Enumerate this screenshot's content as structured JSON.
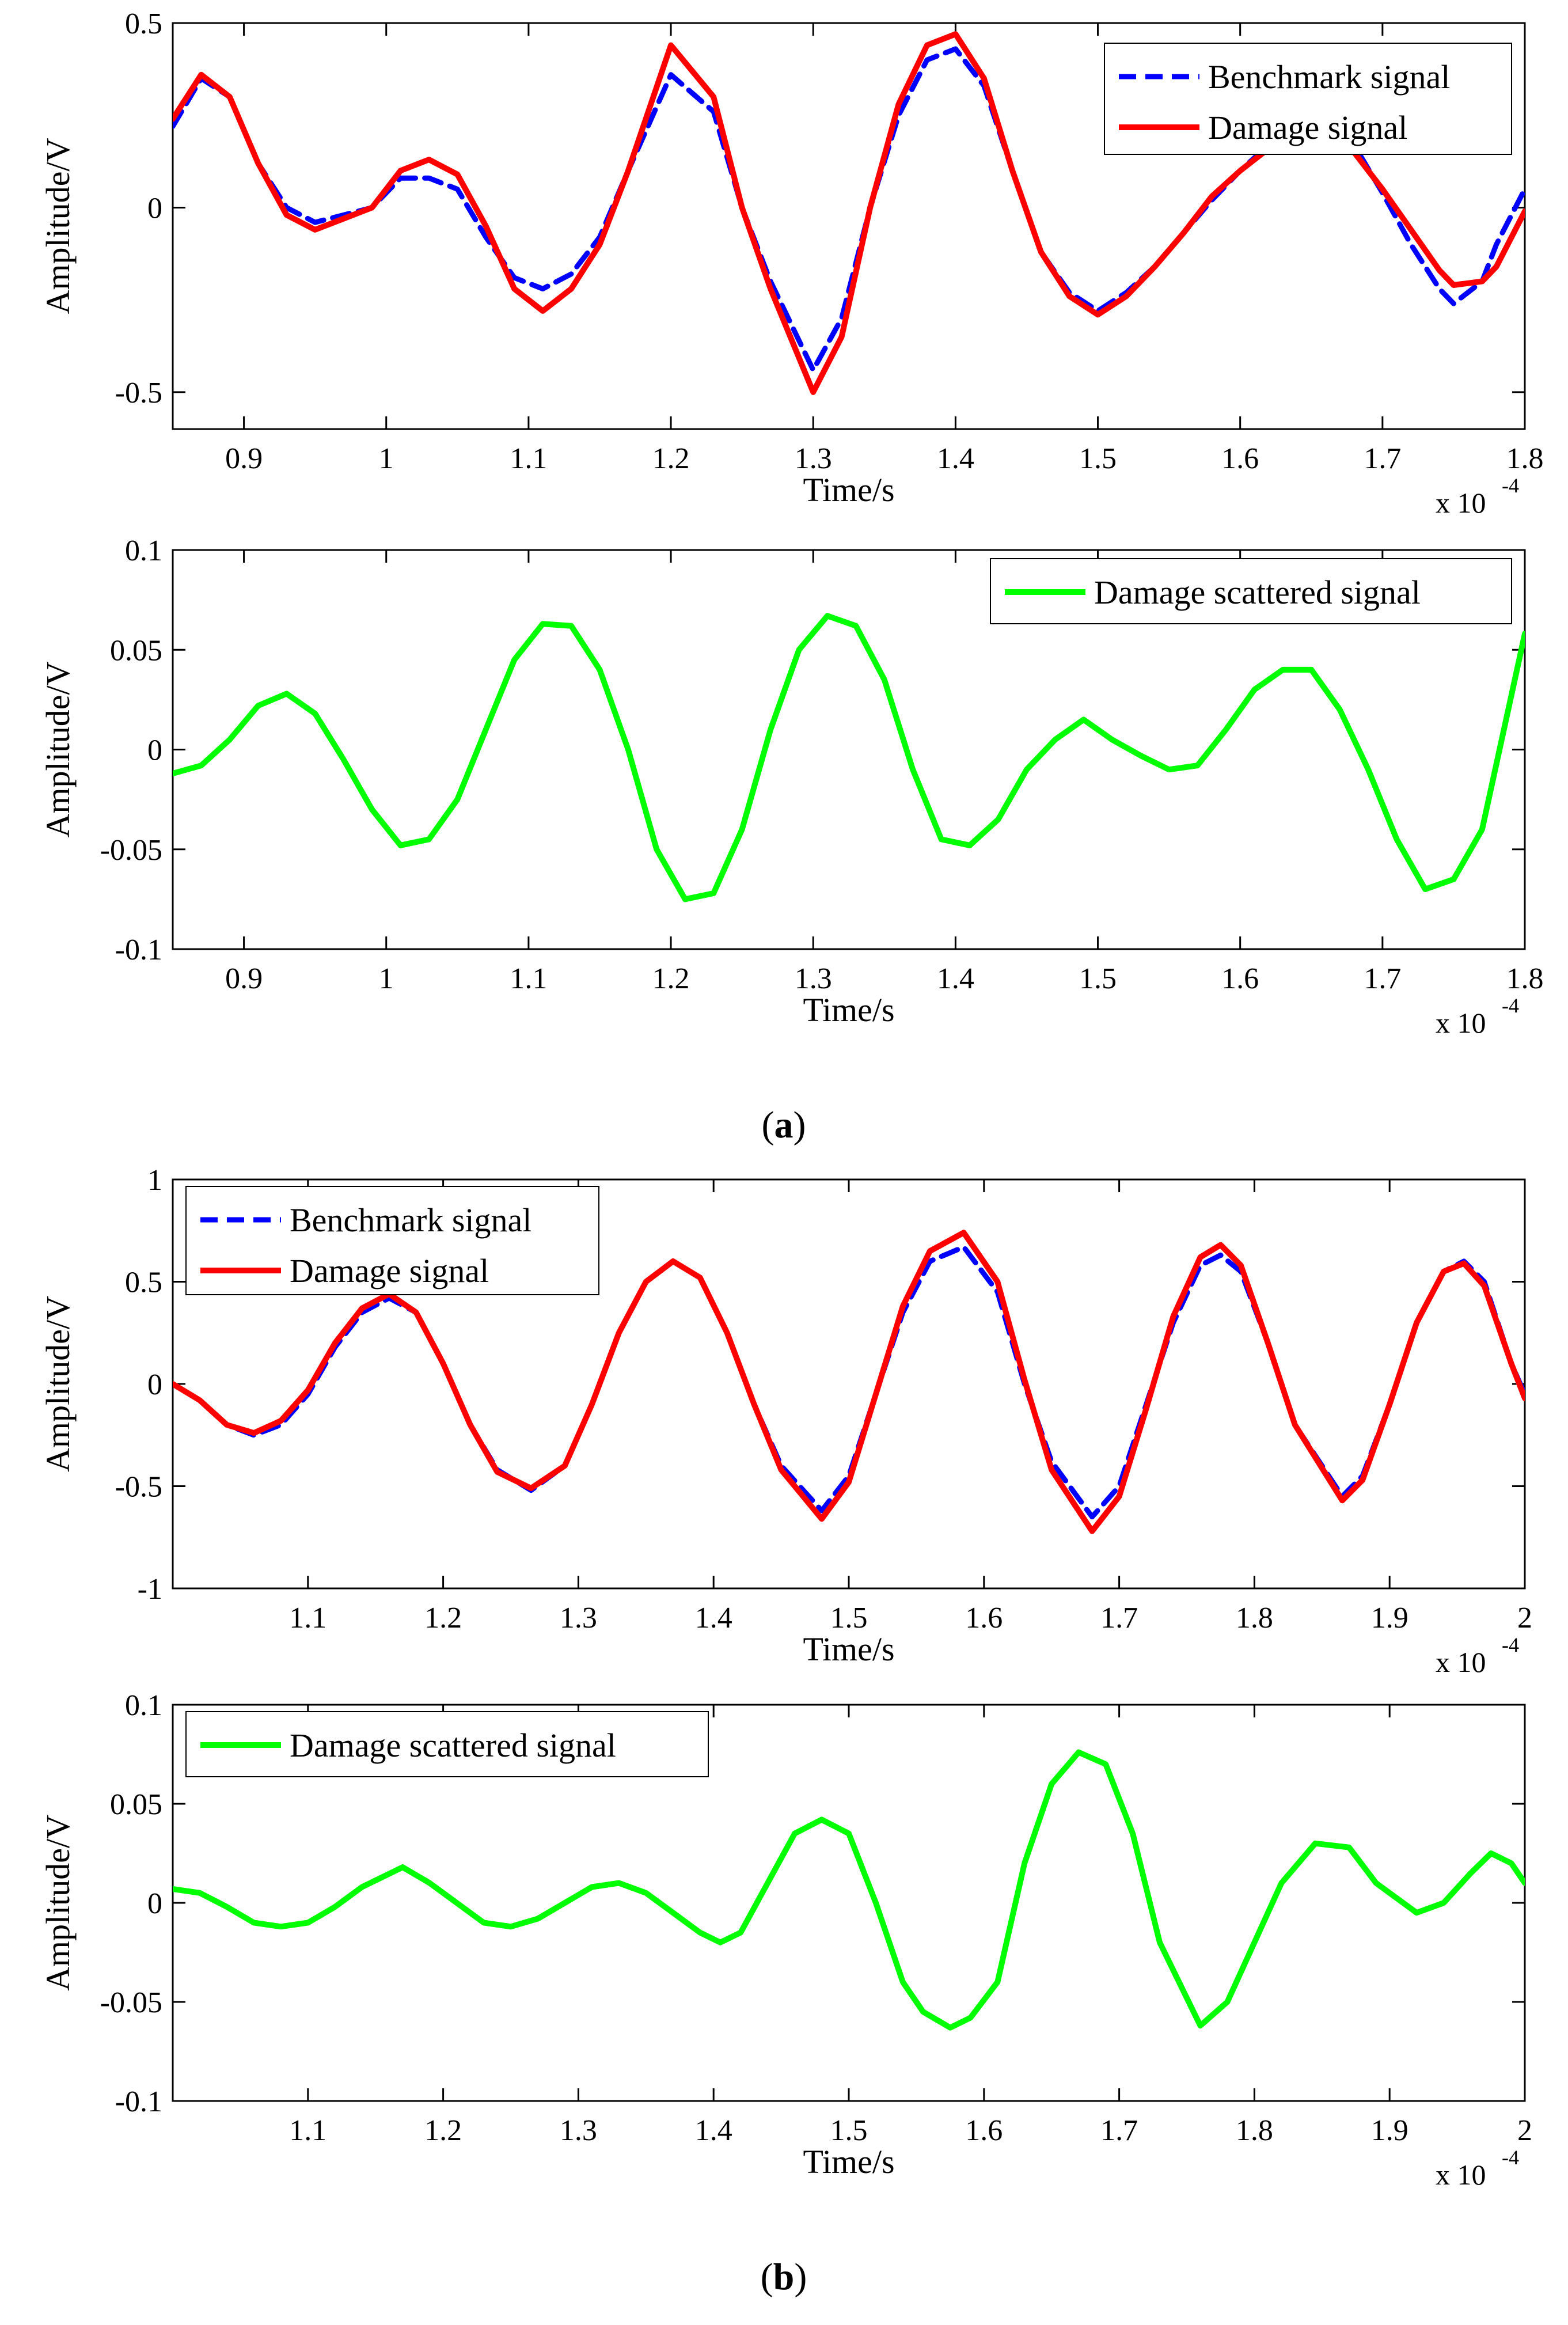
{
  "captions": {
    "a": "a",
    "b": "b"
  },
  "colors": {
    "benchmark": "#0000ff",
    "damage": "#ff0000",
    "scattered": "#00ff00"
  },
  "chart_data": [
    {
      "type": "line",
      "id": "a-top",
      "xlabel": "Time/s",
      "ylabel": "Amplitude/V",
      "x_multiplier": "x 10",
      "x_multiplier_exp": "-4",
      "xlim": [
        0.85,
        1.8
      ],
      "ylim": [
        -0.6,
        0.5
      ],
      "xticks": [
        0.9,
        1.0,
        1.1,
        1.2,
        1.3,
        1.4,
        1.5,
        1.6,
        1.7,
        1.8
      ],
      "xtick_labels": [
        "0.9",
        "1",
        "1.1",
        "1.2",
        "1.3",
        "1.4",
        "1.5",
        "1.6",
        "1.7",
        "1.8"
      ],
      "yticks": [
        -0.5,
        0,
        0.5
      ],
      "ytick_labels": [
        "-0.5",
        "0",
        "0.5"
      ],
      "legend": "top-right",
      "series": [
        {
          "name": "Benchmark signal",
          "style": "dashed",
          "color": "#0000ff",
          "x": [
            0.85,
            0.87,
            0.89,
            0.91,
            0.93,
            0.95,
            0.97,
            0.99,
            1.01,
            1.03,
            1.05,
            1.07,
            1.09,
            1.11,
            1.13,
            1.15,
            1.17,
            1.2,
            1.23,
            1.25,
            1.27,
            1.3,
            1.32,
            1.34,
            1.36,
            1.38,
            1.4,
            1.42,
            1.44,
            1.46,
            1.48,
            1.5,
            1.52,
            1.54,
            1.56,
            1.58,
            1.6,
            1.62,
            1.64,
            1.66,
            1.68,
            1.7,
            1.72,
            1.74,
            1.75,
            1.77,
            1.78,
            1.8
          ],
          "y": [
            0.22,
            0.35,
            0.3,
            0.12,
            0.0,
            -0.04,
            -0.02,
            0.0,
            0.08,
            0.08,
            0.05,
            -0.08,
            -0.19,
            -0.22,
            -0.18,
            -0.08,
            0.1,
            0.36,
            0.26,
            0.0,
            -0.2,
            -0.44,
            -0.3,
            0.0,
            0.25,
            0.4,
            0.43,
            0.33,
            0.1,
            -0.12,
            -0.23,
            -0.28,
            -0.23,
            -0.16,
            -0.07,
            0.02,
            0.1,
            0.17,
            0.21,
            0.22,
            0.17,
            0.04,
            -0.1,
            -0.22,
            -0.26,
            -0.2,
            -0.1,
            0.05
          ]
        },
        {
          "name": "Damage signal",
          "style": "solid",
          "color": "#ff0000",
          "x": [
            0.85,
            0.87,
            0.89,
            0.91,
            0.93,
            0.95,
            0.97,
            0.99,
            1.01,
            1.03,
            1.05,
            1.07,
            1.09,
            1.11,
            1.13,
            1.15,
            1.17,
            1.2,
            1.23,
            1.25,
            1.27,
            1.3,
            1.32,
            1.34,
            1.36,
            1.38,
            1.4,
            1.42,
            1.44,
            1.46,
            1.48,
            1.5,
            1.52,
            1.54,
            1.56,
            1.58,
            1.6,
            1.62,
            1.64,
            1.66,
            1.68,
            1.7,
            1.72,
            1.74,
            1.75,
            1.77,
            1.78,
            1.8
          ],
          "y": [
            0.24,
            0.36,
            0.3,
            0.12,
            -0.02,
            -0.06,
            -0.03,
            0.0,
            0.1,
            0.13,
            0.09,
            -0.05,
            -0.22,
            -0.28,
            -0.22,
            -0.1,
            0.1,
            0.44,
            0.3,
            0.0,
            -0.22,
            -0.5,
            -0.35,
            0.0,
            0.28,
            0.44,
            0.47,
            0.35,
            0.1,
            -0.12,
            -0.24,
            -0.29,
            -0.24,
            -0.16,
            -0.07,
            0.03,
            0.1,
            0.16,
            0.2,
            0.19,
            0.15,
            0.05,
            -0.06,
            -0.17,
            -0.21,
            -0.2,
            -0.16,
            -0.01
          ]
        }
      ]
    },
    {
      "type": "line",
      "id": "a-bottom",
      "xlabel": "Time/s",
      "ylabel": "Amplitude/V",
      "x_multiplier": "x 10",
      "x_multiplier_exp": "-4",
      "xlim": [
        0.85,
        1.8
      ],
      "ylim": [
        -0.1,
        0.1
      ],
      "xticks": [
        0.9,
        1.0,
        1.1,
        1.2,
        1.3,
        1.4,
        1.5,
        1.6,
        1.7,
        1.8
      ],
      "xtick_labels": [
        "0.9",
        "1",
        "1.1",
        "1.2",
        "1.3",
        "1.4",
        "1.5",
        "1.6",
        "1.7",
        "1.8"
      ],
      "yticks": [
        -0.1,
        -0.05,
        0,
        0.05,
        0.1
      ],
      "ytick_labels": [
        "-0.1",
        "-0.05",
        "0",
        "0.05",
        "0.1"
      ],
      "legend": "top-right",
      "series": [
        {
          "name": "Damage scattered signal",
          "style": "solid",
          "color": "#00ff00",
          "x": [
            0.85,
            0.87,
            0.89,
            0.91,
            0.93,
            0.95,
            0.97,
            0.99,
            1.01,
            1.03,
            1.05,
            1.07,
            1.09,
            1.11,
            1.13,
            1.15,
            1.17,
            1.19,
            1.21,
            1.23,
            1.25,
            1.27,
            1.29,
            1.31,
            1.33,
            1.35,
            1.37,
            1.39,
            1.41,
            1.43,
            1.45,
            1.47,
            1.49,
            1.51,
            1.53,
            1.55,
            1.57,
            1.59,
            1.61,
            1.63,
            1.65,
            1.67,
            1.69,
            1.71,
            1.73,
            1.75,
            1.77,
            1.8
          ],
          "y": [
            -0.012,
            -0.008,
            0.005,
            0.022,
            0.028,
            0.018,
            -0.005,
            -0.03,
            -0.048,
            -0.045,
            -0.025,
            0.01,
            0.045,
            0.063,
            0.062,
            0.04,
            0.0,
            -0.05,
            -0.075,
            -0.072,
            -0.04,
            0.01,
            0.05,
            0.067,
            0.062,
            0.035,
            -0.01,
            -0.045,
            -0.048,
            -0.035,
            -0.01,
            0.005,
            0.015,
            0.005,
            -0.003,
            -0.01,
            -0.008,
            0.01,
            0.03,
            0.04,
            0.04,
            0.02,
            -0.01,
            -0.045,
            -0.07,
            -0.065,
            -0.04,
            0.058
          ]
        }
      ]
    },
    {
      "type": "line",
      "id": "b-top",
      "xlabel": "Time/s",
      "ylabel": "Amplitude/V",
      "x_multiplier": "x 10",
      "x_multiplier_exp": "-4",
      "xlim": [
        1.0,
        2.0
      ],
      "ylim": [
        -1,
        1
      ],
      "xticks": [
        1.1,
        1.2,
        1.3,
        1.4,
        1.5,
        1.6,
        1.7,
        1.8,
        1.9,
        2.0
      ],
      "xtick_labels": [
        "1.1",
        "1.2",
        "1.3",
        "1.4",
        "1.5",
        "1.6",
        "1.7",
        "1.8",
        "1.9",
        "2"
      ],
      "yticks": [
        -1,
        -0.5,
        0,
        0.5,
        1
      ],
      "ytick_labels": [
        "-1",
        "-0.5",
        "0",
        "0.5",
        "1"
      ],
      "legend": "top-left",
      "series": [
        {
          "name": "Benchmark signal",
          "style": "dashed",
          "color": "#0000ff",
          "x": [
            1.0,
            1.02,
            1.04,
            1.06,
            1.08,
            1.1,
            1.12,
            1.14,
            1.16,
            1.18,
            1.2,
            1.22,
            1.24,
            1.265,
            1.29,
            1.31,
            1.33,
            1.35,
            1.37,
            1.39,
            1.41,
            1.43,
            1.45,
            1.48,
            1.5,
            1.52,
            1.54,
            1.56,
            1.585,
            1.61,
            1.63,
            1.65,
            1.68,
            1.7,
            1.72,
            1.74,
            1.76,
            1.775,
            1.79,
            1.81,
            1.83,
            1.865,
            1.88,
            1.9,
            1.92,
            1.94,
            1.955,
            1.97,
            1.99,
            2.0
          ],
          "y": [
            0.0,
            -0.08,
            -0.2,
            -0.25,
            -0.2,
            -0.05,
            0.18,
            0.35,
            0.42,
            0.35,
            0.1,
            -0.2,
            -0.42,
            -0.52,
            -0.4,
            -0.1,
            0.25,
            0.5,
            0.6,
            0.52,
            0.25,
            -0.1,
            -0.4,
            -0.62,
            -0.45,
            -0.05,
            0.35,
            0.6,
            0.67,
            0.45,
            0.0,
            -0.38,
            -0.65,
            -0.5,
            -0.1,
            0.3,
            0.58,
            0.63,
            0.55,
            0.2,
            -0.2,
            -0.55,
            -0.45,
            -0.1,
            0.3,
            0.55,
            0.6,
            0.5,
            0.1,
            -0.05
          ]
        },
        {
          "name": "Damage signal",
          "style": "solid",
          "color": "#ff0000",
          "x": [
            1.0,
            1.02,
            1.04,
            1.06,
            1.08,
            1.1,
            1.12,
            1.14,
            1.16,
            1.18,
            1.2,
            1.22,
            1.24,
            1.265,
            1.29,
            1.31,
            1.33,
            1.35,
            1.37,
            1.39,
            1.41,
            1.43,
            1.45,
            1.48,
            1.5,
            1.52,
            1.54,
            1.56,
            1.585,
            1.61,
            1.63,
            1.65,
            1.68,
            1.7,
            1.72,
            1.74,
            1.76,
            1.775,
            1.79,
            1.81,
            1.83,
            1.865,
            1.88,
            1.9,
            1.92,
            1.94,
            1.955,
            1.97,
            1.99,
            2.0
          ],
          "y": [
            0.0,
            -0.08,
            -0.2,
            -0.24,
            -0.18,
            -0.03,
            0.2,
            0.37,
            0.44,
            0.35,
            0.1,
            -0.2,
            -0.43,
            -0.51,
            -0.4,
            -0.1,
            0.25,
            0.5,
            0.6,
            0.52,
            0.25,
            -0.1,
            -0.42,
            -0.66,
            -0.48,
            -0.05,
            0.38,
            0.65,
            0.74,
            0.5,
            0.02,
            -0.42,
            -0.72,
            -0.55,
            -0.12,
            0.33,
            0.62,
            0.68,
            0.58,
            0.2,
            -0.2,
            -0.57,
            -0.47,
            -0.1,
            0.3,
            0.55,
            0.59,
            0.48,
            0.1,
            -0.07
          ]
        }
      ]
    },
    {
      "type": "line",
      "id": "b-bottom",
      "xlabel": "Time/s",
      "ylabel": "Amplitude/V",
      "x_multiplier": "x 10",
      "x_multiplier_exp": "-4",
      "xlim": [
        1.0,
        2.0
      ],
      "ylim": [
        -0.1,
        0.1
      ],
      "xticks": [
        1.1,
        1.2,
        1.3,
        1.4,
        1.5,
        1.6,
        1.7,
        1.8,
        1.9,
        2.0
      ],
      "xtick_labels": [
        "1.1",
        "1.2",
        "1.3",
        "1.4",
        "1.5",
        "1.6",
        "1.7",
        "1.8",
        "1.9",
        "2"
      ],
      "yticks": [
        -0.1,
        -0.05,
        0,
        0.05,
        0.1
      ],
      "ytick_labels": [
        "-0.1",
        "-0.05",
        "0",
        "0.05",
        "0.1"
      ],
      "legend": "top-left",
      "series": [
        {
          "name": "Damage scattered signal",
          "style": "solid",
          "color": "#00ff00",
          "x": [
            1.0,
            1.02,
            1.04,
            1.06,
            1.08,
            1.1,
            1.12,
            1.14,
            1.17,
            1.19,
            1.21,
            1.23,
            1.25,
            1.27,
            1.29,
            1.31,
            1.33,
            1.35,
            1.37,
            1.39,
            1.405,
            1.42,
            1.44,
            1.46,
            1.48,
            1.5,
            1.52,
            1.54,
            1.555,
            1.575,
            1.59,
            1.61,
            1.63,
            1.65,
            1.67,
            1.69,
            1.71,
            1.73,
            1.76,
            1.78,
            1.8,
            1.82,
            1.845,
            1.87,
            1.89,
            1.92,
            1.94,
            1.96,
            1.975,
            1.99,
            2.0
          ],
          "y": [
            0.007,
            0.005,
            -0.002,
            -0.01,
            -0.012,
            -0.01,
            -0.002,
            0.008,
            0.018,
            0.01,
            0.0,
            -0.01,
            -0.012,
            -0.008,
            0.0,
            0.008,
            0.01,
            0.005,
            -0.005,
            -0.015,
            -0.02,
            -0.015,
            0.01,
            0.035,
            0.042,
            0.035,
            0.0,
            -0.04,
            -0.055,
            -0.063,
            -0.058,
            -0.04,
            0.02,
            0.06,
            0.076,
            0.07,
            0.035,
            -0.02,
            -0.062,
            -0.05,
            -0.02,
            0.01,
            0.03,
            0.028,
            0.01,
            -0.005,
            0.0,
            0.015,
            0.025,
            0.02,
            0.01
          ]
        }
      ]
    }
  ]
}
